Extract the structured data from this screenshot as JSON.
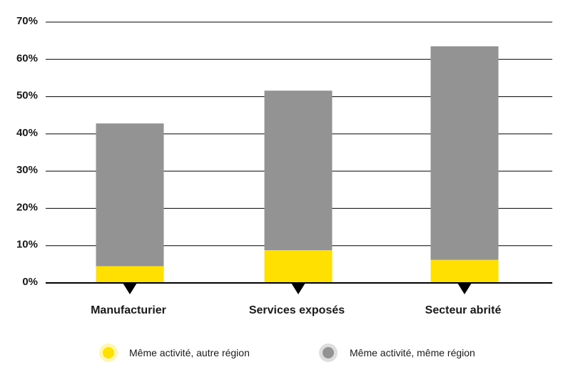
{
  "chart_data": {
    "type": "bar",
    "stacked": true,
    "categories": [
      "Manufacturier",
      "Services exposés",
      "Secteur abrité"
    ],
    "series": [
      {
        "name": "Même activité, autre région",
        "values": [
          4.5,
          8.8,
          6.2
        ],
        "color": "#ffe000"
      },
      {
        "name": "Même activité, même région",
        "values": [
          38.3,
          42.8,
          57.3
        ],
        "color": "#939393"
      }
    ],
    "y_ticks": [
      0,
      10,
      20,
      30,
      40,
      50,
      60,
      70
    ],
    "y_tick_labels": [
      "0%",
      "10%",
      "20%",
      "30%",
      "40%",
      "50%",
      "60%",
      "70%"
    ],
    "ylim": [
      0,
      70
    ],
    "grid": true,
    "legend_position": "bottom",
    "title": "",
    "xlabel": "",
    "ylabel": ""
  }
}
